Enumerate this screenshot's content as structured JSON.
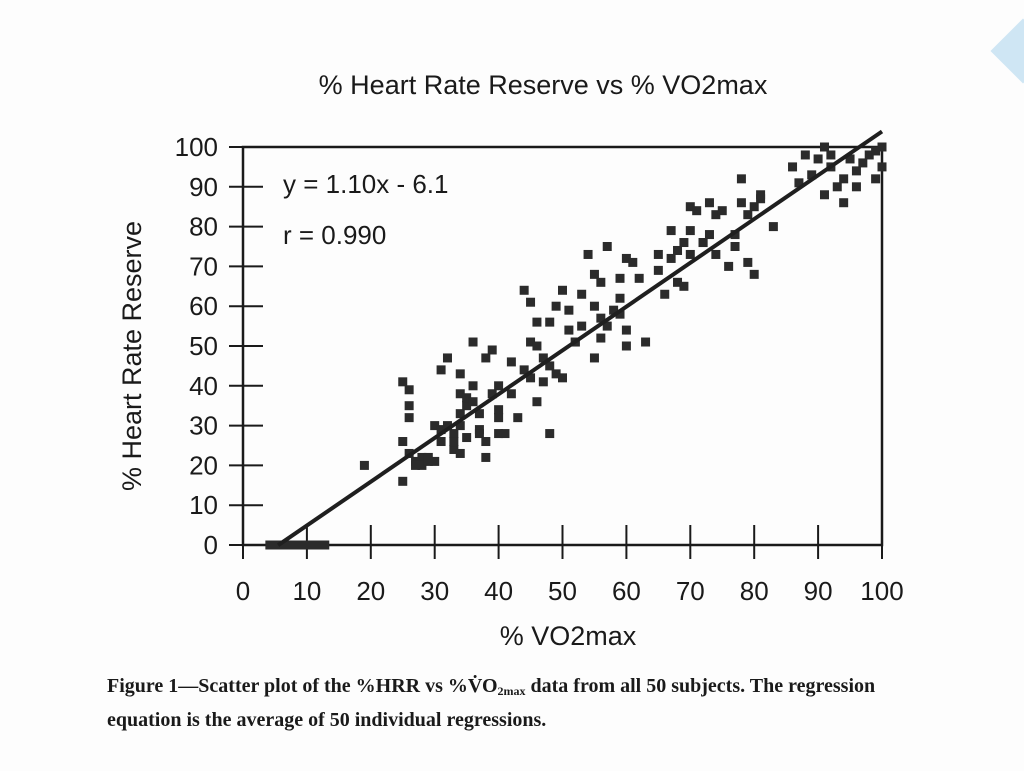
{
  "chart_data": {
    "type": "scatter",
    "title": "% Heart Rate Reserve vs % VO2max",
    "xlabel": "% VO2max",
    "ylabel": "% Heart Rate Reserve",
    "xlim": [
      0,
      100
    ],
    "ylim": [
      0,
      100
    ],
    "xticks": [
      "0",
      "10",
      "20",
      "30",
      "40",
      "50",
      "60",
      "70",
      "80",
      "90",
      "100"
    ],
    "yticks": [
      "0",
      "10",
      "20",
      "30",
      "40",
      "50",
      "60",
      "70",
      "80",
      "90",
      "100"
    ],
    "grid": false,
    "legend": "none",
    "annotations": {
      "equation": "y = 1.10x - 6.1",
      "r": "r = 0.990"
    },
    "regression_line": {
      "slope": 1.1,
      "intercept": -6.1,
      "x_start": 5.5,
      "x_end": 100
    },
    "zero_bar": {
      "x_start": 3.5,
      "x_end": 13.5,
      "y": 0
    },
    "colors": {
      "marker": "#2b2b2b",
      "line": "#1f1f1f",
      "axis": "#1a1a1a"
    },
    "points": [
      [
        19,
        20
      ],
      [
        25,
        41
      ],
      [
        26,
        39
      ],
      [
        26,
        35
      ],
      [
        26,
        32
      ],
      [
        25,
        26
      ],
      [
        25,
        16
      ],
      [
        26,
        23
      ],
      [
        27,
        21
      ],
      [
        27,
        20
      ],
      [
        28,
        22
      ],
      [
        28,
        20
      ],
      [
        29,
        22
      ],
      [
        29,
        21
      ],
      [
        30,
        21
      ],
      [
        30,
        30
      ],
      [
        31,
        26
      ],
      [
        31,
        29
      ],
      [
        31,
        44
      ],
      [
        32,
        47
      ],
      [
        32,
        30
      ],
      [
        33,
        28
      ],
      [
        33,
        24
      ],
      [
        33,
        26
      ],
      [
        34,
        23
      ],
      [
        34,
        30
      ],
      [
        34,
        33
      ],
      [
        34,
        38
      ],
      [
        34,
        43
      ],
      [
        35,
        35
      ],
      [
        35,
        37
      ],
      [
        35,
        27
      ],
      [
        36,
        36
      ],
      [
        36,
        40
      ],
      [
        36,
        51
      ],
      [
        37,
        33
      ],
      [
        37,
        29
      ],
      [
        37,
        28
      ],
      [
        38,
        47
      ],
      [
        38,
        26
      ],
      [
        38,
        22
      ],
      [
        39,
        38
      ],
      [
        39,
        49
      ],
      [
        40,
        34
      ],
      [
        40,
        28
      ],
      [
        40,
        32
      ],
      [
        40,
        40
      ],
      [
        41,
        28
      ],
      [
        42,
        38
      ],
      [
        42,
        46
      ],
      [
        43,
        32
      ],
      [
        44,
        44
      ],
      [
        44,
        64
      ],
      [
        45,
        61
      ],
      [
        45,
        42
      ],
      [
        45,
        51
      ],
      [
        46,
        50
      ],
      [
        46,
        36
      ],
      [
        46,
        56
      ],
      [
        47,
        41
      ],
      [
        47,
        47
      ],
      [
        48,
        56
      ],
      [
        48,
        28
      ],
      [
        48,
        45
      ],
      [
        49,
        60
      ],
      [
        49,
        43
      ],
      [
        50,
        42
      ],
      [
        50,
        64
      ],
      [
        51,
        59
      ],
      [
        51,
        54
      ],
      [
        52,
        51
      ],
      [
        52,
        51
      ],
      [
        53,
        55
      ],
      [
        53,
        63
      ],
      [
        54,
        73
      ],
      [
        55,
        68
      ],
      [
        55,
        60
      ],
      [
        55,
        47
      ],
      [
        56,
        66
      ],
      [
        56,
        57
      ],
      [
        56,
        52
      ],
      [
        57,
        75
      ],
      [
        57,
        55
      ],
      [
        58,
        59
      ],
      [
        59,
        62
      ],
      [
        59,
        58
      ],
      [
        59,
        67
      ],
      [
        60,
        72
      ],
      [
        60,
        50
      ],
      [
        60,
        54
      ],
      [
        61,
        71
      ],
      [
        62,
        67
      ],
      [
        63,
        51
      ],
      [
        65,
        73
      ],
      [
        65,
        69
      ],
      [
        66,
        63
      ],
      [
        67,
        79
      ],
      [
        67,
        72
      ],
      [
        68,
        66
      ],
      [
        68,
        74
      ],
      [
        69,
        76
      ],
      [
        69,
        65
      ],
      [
        70,
        73
      ],
      [
        70,
        85
      ],
      [
        70,
        79
      ],
      [
        71,
        84
      ],
      [
        72,
        76
      ],
      [
        72,
        76
      ],
      [
        73,
        78
      ],
      [
        73,
        86
      ],
      [
        74,
        83
      ],
      [
        74,
        73
      ],
      [
        75,
        84
      ],
      [
        76,
        70
      ],
      [
        77,
        75
      ],
      [
        77,
        78
      ],
      [
        78,
        92
      ],
      [
        78,
        86
      ],
      [
        79,
        83
      ],
      [
        79,
        71
      ],
      [
        80,
        68
      ],
      [
        80,
        85
      ],
      [
        81,
        87
      ],
      [
        81,
        88
      ],
      [
        83,
        80
      ],
      [
        86,
        95
      ],
      [
        87,
        91
      ],
      [
        88,
        98
      ],
      [
        89,
        93
      ],
      [
        90,
        97
      ],
      [
        91,
        88
      ],
      [
        91,
        100
      ],
      [
        92,
        95
      ],
      [
        92,
        98
      ],
      [
        93,
        90
      ],
      [
        94,
        86
      ],
      [
        94,
        92
      ],
      [
        95,
        97
      ],
      [
        96,
        94
      ],
      [
        96,
        90
      ],
      [
        97,
        96
      ],
      [
        98,
        98
      ],
      [
        99,
        99
      ],
      [
        99,
        92
      ],
      [
        100,
        100
      ],
      [
        100,
        95
      ]
    ]
  },
  "caption": {
    "fig_label": "Figure 1",
    "part1": "—Scatter plot of the %HRR vs %V̇O",
    "sub": "2max",
    "part2": " data from all 50 subjects. The regression equation is the average of 50 individual regressions."
  }
}
